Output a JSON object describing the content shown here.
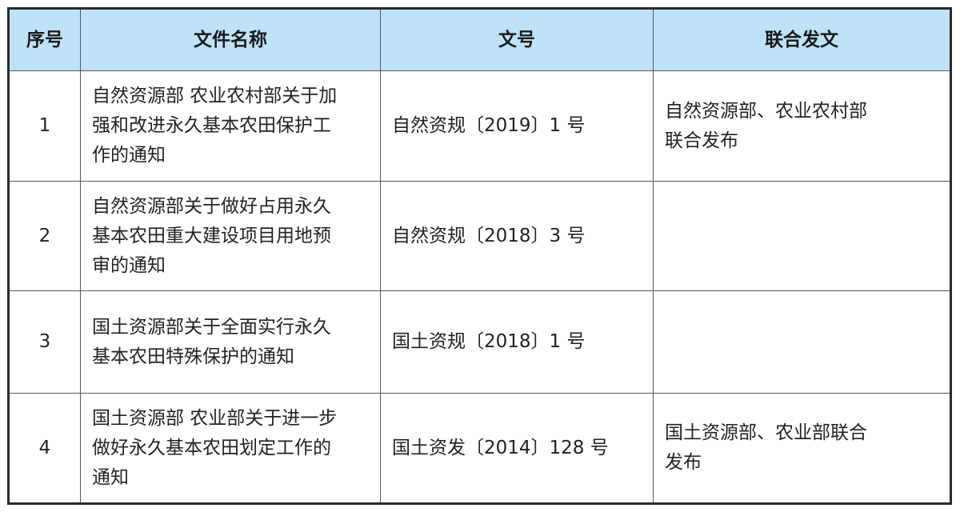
{
  "table": {
    "headers": [
      "序号",
      "文件名称",
      "文号",
      "联合发文"
    ],
    "rows": [
      {
        "index": "1",
        "name": [
          "自然资源部 农业农村部关于加",
          "强和改进永久基本农田保护工",
          "作的通知"
        ],
        "doc_no": "自然资规〔2019〕1 号",
        "joint": [
          "自然资源部、农业农村部",
          "联合发布"
        ]
      },
      {
        "index": "2",
        "name": [
          "自然资源部关于做好占用永久",
          "基本农田重大建设项目用地预",
          "审的通知"
        ],
        "doc_no": "自然资规〔2018〕3 号",
        "joint": []
      },
      {
        "index": "3",
        "name": [
          "国土资源部关于全面实行永久",
          "基本农田特殊保护的通知"
        ],
        "doc_no": "国土资规〔2018〕1 号",
        "joint": []
      },
      {
        "index": "4",
        "name": [
          "国土资源部 农业部关于进一步",
          "做好永久基本农田划定工作的",
          "通知"
        ],
        "doc_no": "国土资发〔2014〕128 号",
        "joint": [
          "国土资源部、农业部联合",
          "发布"
        ]
      }
    ]
  }
}
